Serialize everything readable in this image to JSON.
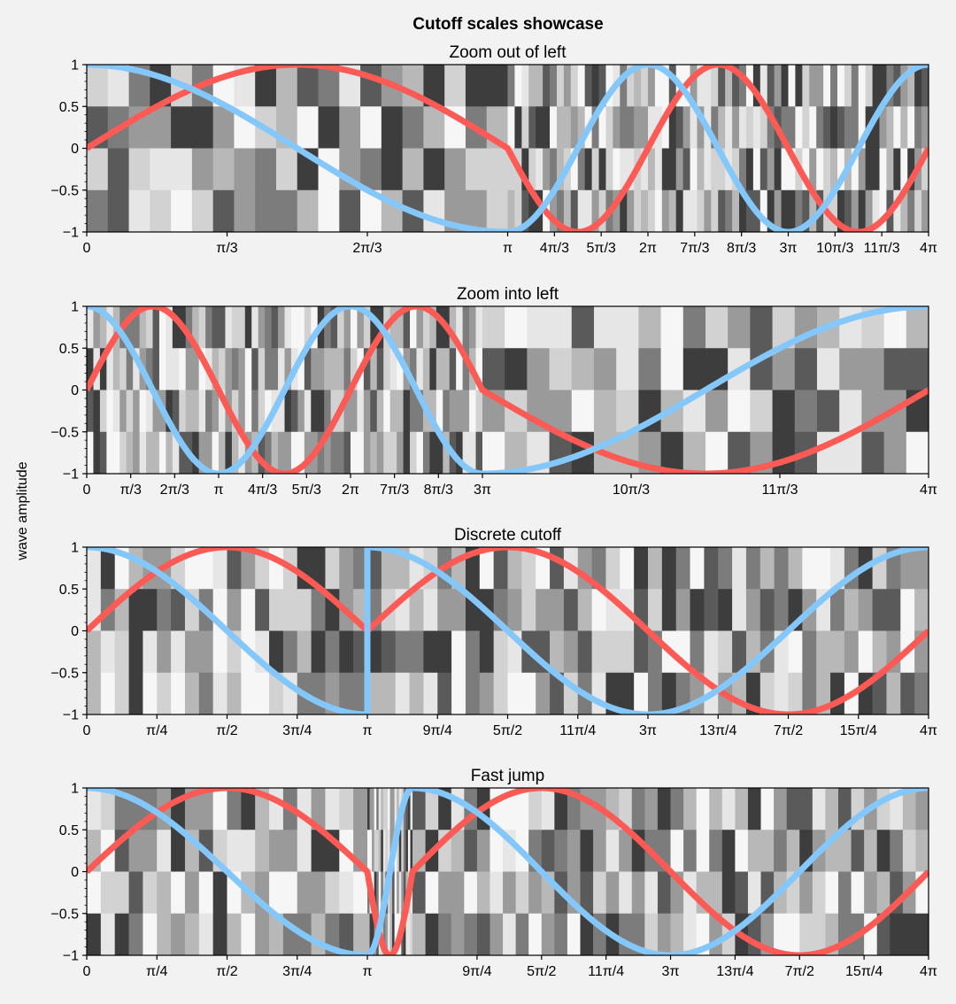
{
  "figure": {
    "suptitle": "Cutoff scales showcase",
    "ylabel": "wave amplitude",
    "colors": {
      "background": "#f2f2f2",
      "sine": "#fb5a55",
      "cosine": "#84c8fb"
    }
  },
  "chart_data": [
    {
      "type": "line",
      "title": "Zoom out of left",
      "xlim": [
        0,
        12.566
      ],
      "ylim": [
        -1,
        1
      ],
      "yticks": [
        "1",
        "0.5",
        "0",
        "−0.5",
        "−1"
      ],
      "xscale": "cutoff: x in [0, π] occupies 50% of the axis width; x in [π, 4π] occupies the remaining 50%",
      "xticks": [
        {
          "value": 0,
          "label": "0"
        },
        {
          "value": 1.0472,
          "label": "π/3"
        },
        {
          "value": 2.0944,
          "label": "2π/3"
        },
        {
          "value": 3.1416,
          "label": "π"
        },
        {
          "value": 4.1888,
          "label": "4π/3"
        },
        {
          "value": 5.236,
          "label": "5π/3"
        },
        {
          "value": 6.2832,
          "label": "2π"
        },
        {
          "value": 7.3304,
          "label": "7π/3"
        },
        {
          "value": 8.3776,
          "label": "8π/3"
        },
        {
          "value": 9.4248,
          "label": "3π"
        },
        {
          "value": 10.472,
          "label": "10π/3"
        },
        {
          "value": 11.5192,
          "label": "11π/3"
        },
        {
          "value": 12.5664,
          "label": "4π"
        }
      ],
      "series": [
        {
          "function": "sin(x)",
          "color": "#fb5a55"
        },
        {
          "function": "cos(x)",
          "color": "#84c8fb"
        }
      ],
      "background": "random grayscale checkerboard (4 rows)"
    },
    {
      "type": "line",
      "title": "Zoom into left",
      "xlim": [
        0,
        12.566
      ],
      "ylim": [
        -1,
        1
      ],
      "yticks": [
        "1",
        "0.5",
        "0",
        "−0.5",
        "−1"
      ],
      "xscale": "cutoff: x in [0, 3π] occupies 47% of the axis width; x in [3π, 4π] occupies the remaining 53%",
      "xticks": [
        {
          "value": 0,
          "label": "0"
        },
        {
          "value": 1.0472,
          "label": "π/3"
        },
        {
          "value": 2.0944,
          "label": "2π/3"
        },
        {
          "value": 3.1416,
          "label": "π"
        },
        {
          "value": 4.1888,
          "label": "4π/3"
        },
        {
          "value": 5.236,
          "label": "5π/3"
        },
        {
          "value": 6.2832,
          "label": "2π"
        },
        {
          "value": 7.3304,
          "label": "7π/3"
        },
        {
          "value": 8.3776,
          "label": "8π/3"
        },
        {
          "value": 9.4248,
          "label": "3π"
        },
        {
          "value": 10.472,
          "label": "10π/3"
        },
        {
          "value": 11.5192,
          "label": "11π/3"
        },
        {
          "value": 12.5664,
          "label": "4π"
        }
      ],
      "series": [
        {
          "function": "sin(x)",
          "color": "#fb5a55"
        },
        {
          "function": "cos(x)",
          "color": "#84c8fb"
        }
      ],
      "background": "random grayscale checkerboard (4 rows)"
    },
    {
      "type": "line",
      "title": "Discrete cutoff",
      "xlim": [
        0,
        12.566
      ],
      "ylim": [
        -1,
        1
      ],
      "yticks": [
        "1",
        "0.5",
        "0",
        "−0.5",
        "−1"
      ],
      "xscale": "discrete jump: data from x = π to x = 2π is removed; position π (1/3 of width) continues directly at x = 2π",
      "xticks": [
        {
          "value": 0,
          "label": "0"
        },
        {
          "value": 0.7854,
          "label": "π/4"
        },
        {
          "value": 1.5708,
          "label": "π/2"
        },
        {
          "value": 2.3562,
          "label": "3π/4"
        },
        {
          "value": 3.1416,
          "label": "π"
        },
        {
          "value": 7.0686,
          "label": "9π/4"
        },
        {
          "value": 7.854,
          "label": "5π/2"
        },
        {
          "value": 8.6394,
          "label": "11π/4"
        },
        {
          "value": 9.4248,
          "label": "3π"
        },
        {
          "value": 10.2102,
          "label": "13π/4"
        },
        {
          "value": 10.9956,
          "label": "7π/2"
        },
        {
          "value": 11.781,
          "label": "15π/4"
        },
        {
          "value": 12.5664,
          "label": "4π"
        }
      ],
      "series": [
        {
          "function": "sin(x)",
          "color": "#fb5a55"
        },
        {
          "function": "cos(x)",
          "color": "#84c8fb"
        }
      ],
      "background": "random grayscale checkerboard (4 rows)"
    },
    {
      "type": "line",
      "title": "Fast jump",
      "xlim": [
        0,
        12.566
      ],
      "ylim": [
        -1,
        1
      ],
      "yticks": [
        "1",
        "0.5",
        "0",
        "−0.5",
        "−1"
      ],
      "xscale": "fast jump: x from π to 2π is compressed into a narrow band (about 6% of width) just right of π",
      "xticks": [
        {
          "value": 0,
          "label": "0"
        },
        {
          "value": 0.7854,
          "label": "π/4"
        },
        {
          "value": 1.5708,
          "label": "π/2"
        },
        {
          "value": 2.3562,
          "label": "3π/4"
        },
        {
          "value": 3.1416,
          "label": "π"
        },
        {
          "value": 7.0686,
          "label": "9π/4"
        },
        {
          "value": 7.854,
          "label": "5π/2"
        },
        {
          "value": 8.6394,
          "label": "11π/4"
        },
        {
          "value": 9.4248,
          "label": "3π"
        },
        {
          "value": 10.2102,
          "label": "13π/4"
        },
        {
          "value": 10.9956,
          "label": "7π/2"
        },
        {
          "value": 11.781,
          "label": "15π/4"
        },
        {
          "value": 12.5664,
          "label": "4π"
        }
      ],
      "series": [
        {
          "function": "sin(x)",
          "color": "#fb5a55"
        },
        {
          "function": "cos(x)",
          "color": "#84c8fb"
        }
      ],
      "background": "random grayscale checkerboard (4 rows)"
    }
  ]
}
